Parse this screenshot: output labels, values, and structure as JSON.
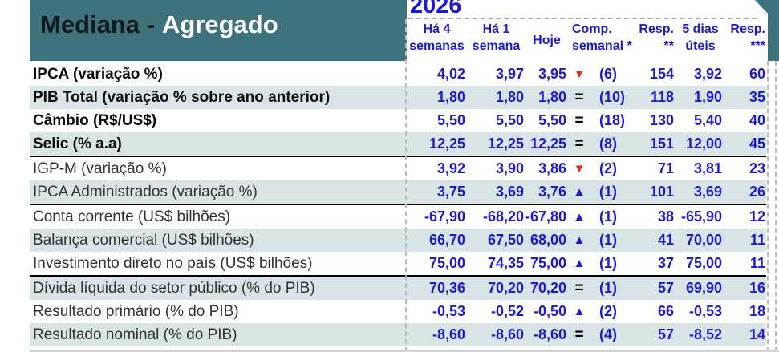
{
  "header": {
    "title_prefix": "Mediana -",
    "title_suffix": "Agregado",
    "year": "2026",
    "columns": [
      {
        "line1": "Há 4",
        "line2": "semanas"
      },
      {
        "line1": "Há 1",
        "line2": "semana"
      },
      {
        "line1": "Hoje",
        "line2": ""
      },
      {
        "line1": "Comp.",
        "line2": "semanal *"
      },
      {
        "line1": "Resp.",
        "line2": "**"
      },
      {
        "line1": "5 dias",
        "line2": "úteis"
      },
      {
        "line1": "Resp.",
        "line2": "***"
      }
    ]
  },
  "colors": {
    "band_teal": "#3e737d",
    "stripe_blue": "#d9e4e7",
    "value_blue": "#1e1ad2",
    "arrow_red": "#e5301d"
  },
  "rows": [
    {
      "label": "IPCA (variação %)",
      "bold": true,
      "sep_after": false,
      "v4w": "4,02",
      "v1w": "3,97",
      "today": "3,95",
      "trend": "down",
      "comp": "(6)",
      "resp": "154",
      "d5": "3,92",
      "resp3": "60"
    },
    {
      "label": "PIB Total (variação % sobre ano anterior)",
      "bold": true,
      "sep_after": false,
      "v4w": "1,80",
      "v1w": "1,80",
      "today": "1,80",
      "trend": "equal",
      "comp": "(10)",
      "resp": "118",
      "d5": "1,90",
      "resp3": "35"
    },
    {
      "label": "Câmbio (R$/US$)",
      "bold": true,
      "sep_after": false,
      "v4w": "5,50",
      "v1w": "5,50",
      "today": "5,50",
      "trend": "equal",
      "comp": "(18)",
      "resp": "130",
      "d5": "5,40",
      "resp3": "40"
    },
    {
      "label": "Selic (% a.a)",
      "bold": true,
      "sep_after": true,
      "v4w": "12,25",
      "v1w": "12,25",
      "today": "12,25",
      "trend": "equal",
      "comp": "(8)",
      "resp": "151",
      "d5": "12,00",
      "resp3": "45"
    },
    {
      "label": "IGP-M (variação %)",
      "bold": false,
      "sep_after": false,
      "v4w": "3,92",
      "v1w": "3,90",
      "today": "3,86",
      "trend": "down",
      "comp": "(2)",
      "resp": "71",
      "d5": "3,81",
      "resp3": "23"
    },
    {
      "label": "IPCA Administrados (variação %)",
      "bold": false,
      "sep_after": true,
      "v4w": "3,75",
      "v1w": "3,69",
      "today": "3,76",
      "trend": "up",
      "comp": "(1)",
      "resp": "101",
      "d5": "3,69",
      "resp3": "26"
    },
    {
      "label": "Conta corrente (US$ bilhões)",
      "bold": false,
      "sep_after": false,
      "v4w": "-67,90",
      "v1w": "-68,20",
      "today": "-67,80",
      "trend": "up",
      "comp": "(1)",
      "resp": "38",
      "d5": "-65,90",
      "resp3": "12"
    },
    {
      "label": "Balança comercial (US$ bilhões)",
      "bold": false,
      "sep_after": false,
      "v4w": "66,70",
      "v1w": "67,50",
      "today": "68,00",
      "trend": "up",
      "comp": "(1)",
      "resp": "41",
      "d5": "70,00",
      "resp3": "11"
    },
    {
      "label": "Investimento direto no país (US$ bilhões)",
      "bold": false,
      "sep_after": true,
      "v4w": "75,00",
      "v1w": "74,35",
      "today": "75,00",
      "trend": "up",
      "comp": "(1)",
      "resp": "37",
      "d5": "75,00",
      "resp3": "11"
    },
    {
      "label": "Dívida líquida do setor público (% do PIB)",
      "bold": false,
      "sep_after": false,
      "v4w": "70,36",
      "v1w": "70,20",
      "today": "70,20",
      "trend": "equal",
      "comp": "(1)",
      "resp": "57",
      "d5": "69,90",
      "resp3": "16"
    },
    {
      "label": "Resultado primário (% do PIB)",
      "bold": false,
      "sep_after": false,
      "v4w": "-0,53",
      "v1w": "-0,52",
      "today": "-0,50",
      "trend": "up",
      "comp": "(2)",
      "resp": "66",
      "d5": "-0,53",
      "resp3": "18"
    },
    {
      "label": "Resultado nominal (% do PIB)",
      "bold": false,
      "sep_after": false,
      "v4w": "-8,60",
      "v1w": "-8,60",
      "today": "-8,60",
      "trend": "equal",
      "comp": "(4)",
      "resp": "57",
      "d5": "-8,52",
      "resp3": "14"
    }
  ]
}
